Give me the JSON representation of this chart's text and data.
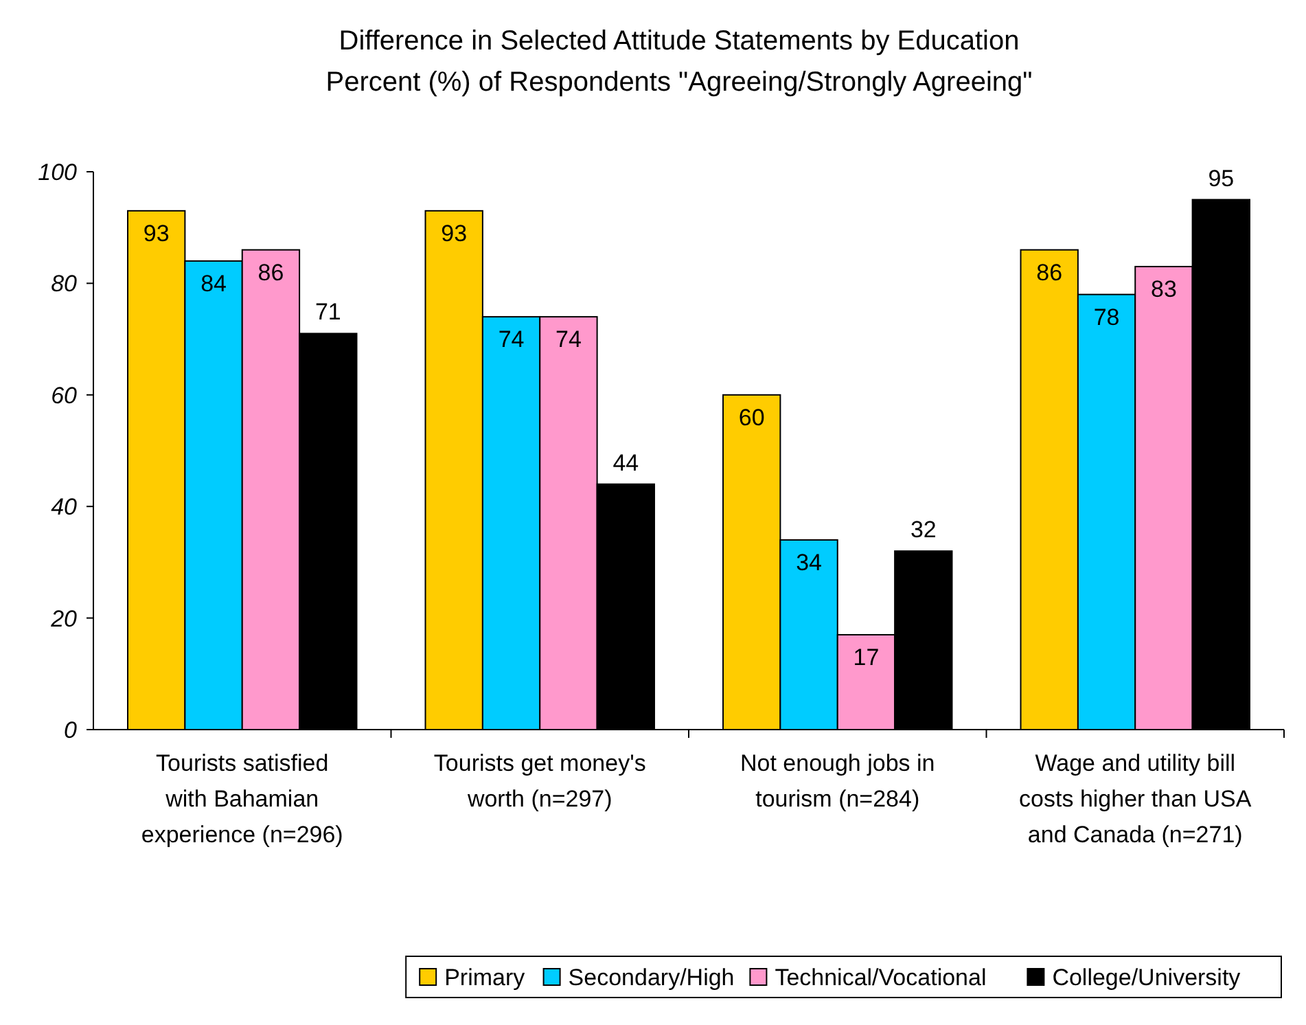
{
  "chart_data": {
    "type": "bar",
    "title": "Difference in Selected Attitude Statements by Education",
    "subtitle": "Percent (%) of Respondents \"Agreeing/Strongly Agreeing\"",
    "categories": [
      "Tourists satisfied with Bahamian experience (n=296)",
      "Tourists get money's worth (n=297)",
      "Not enough jobs in tourism (n=284)",
      "Wage and utility bill costs higher than USA and Canada (n=271)"
    ],
    "series": [
      {
        "name": "Primary",
        "color": "#ffcc00",
        "values": [
          93,
          93,
          60,
          86
        ]
      },
      {
        "name": "Secondary/High",
        "color": "#00ccff",
        "values": [
          84,
          74,
          34,
          78
        ]
      },
      {
        "name": "Technical/Vocational",
        "color": "#ff99cc",
        "values": [
          86,
          74,
          17,
          83
        ]
      },
      {
        "name": "College/University",
        "color": "#000000",
        "values": [
          71,
          44,
          32,
          95
        ]
      }
    ],
    "ylim": [
      0,
      100
    ],
    "yticks": [
      0,
      20,
      40,
      60,
      80,
      100
    ],
    "grid": false,
    "legend": "bottom",
    "data_labels": true
  }
}
